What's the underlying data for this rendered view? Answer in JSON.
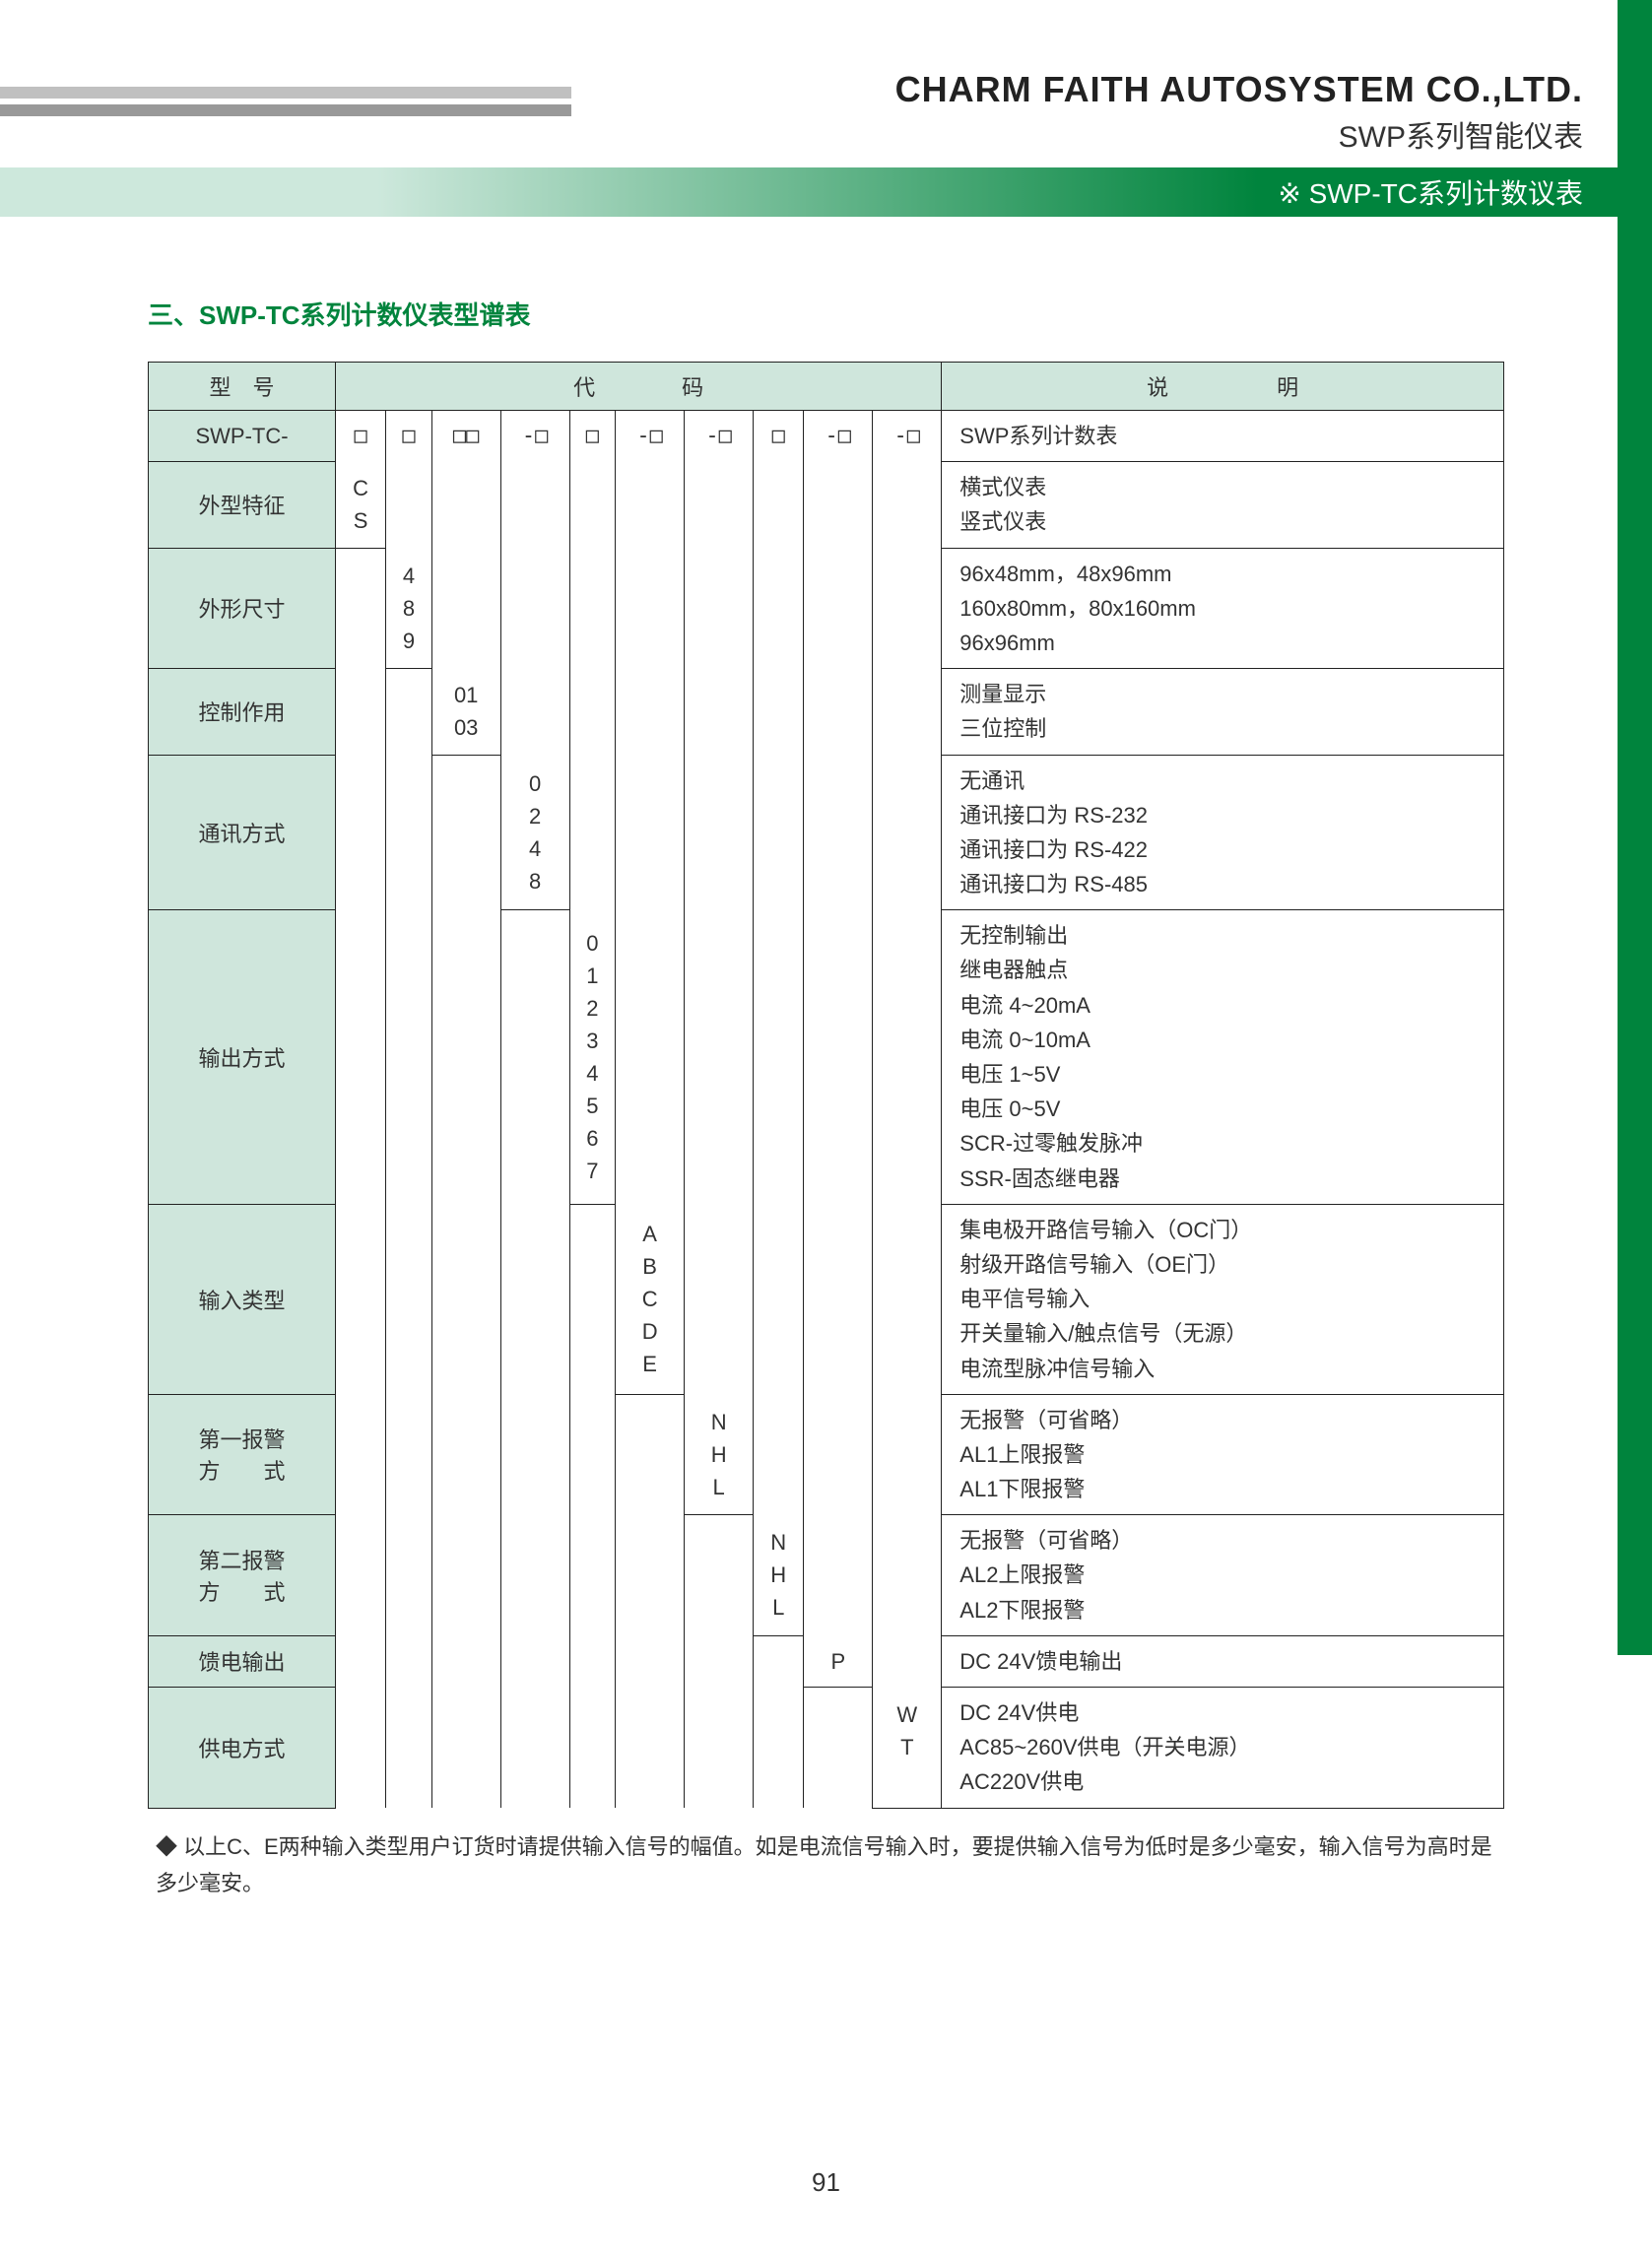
{
  "header": {
    "company": "CHARM FAITH AUTOSYSTEM CO.,LTD.",
    "series": "SWP系列智能仪表",
    "banner": "※ SWP-TC系列计数议表"
  },
  "section_title": "三、SWP-TC系列计数仪表型谱表",
  "table_headers": {
    "model": "型　号",
    "code": "代　　　　码",
    "desc": "说　　　　　明"
  },
  "code_row": {
    "label": "SWP-TC-",
    "c1": "□",
    "c2": "□",
    "c3": "□□",
    "c4": "-□",
    "c5": "□",
    "c6": "-□",
    "c7": "-□",
    "c8": "□",
    "c9": "-□",
    "c10": "-□",
    "desc": "SWP系列计数表"
  },
  "rows": [
    {
      "label": "外型特征",
      "col": 1,
      "codes": "C\nS",
      "desc": "横式仪表\n竖式仪表"
    },
    {
      "label": "外形尺寸",
      "col": 2,
      "codes": "4\n8\n9",
      "desc": "96x48mm，48x96mm\n160x80mm，80x160mm\n96x96mm"
    },
    {
      "label": "控制作用",
      "col": 3,
      "codes": "01\n03",
      "desc": "测量显示\n三位控制"
    },
    {
      "label": "通讯方式",
      "col": 4,
      "codes": "0\n2\n4\n8",
      "desc": "无通讯\n通讯接口为 RS-232\n通讯接口为 RS-422\n通讯接口为 RS-485"
    },
    {
      "label": "输出方式",
      "col": 5,
      "codes": "0\n1\n2\n3\n4\n5\n6\n7",
      "desc": "无控制输出\n继电器触点\n电流 4~20mA\n电流 0~10mA\n电压 1~5V\n电压 0~5V\nSCR-过零触发脉冲\nSSR-固态继电器"
    },
    {
      "label": "输入类型",
      "col": 6,
      "codes": "A\nB\nC\nD\nE",
      "desc": "集电极开路信号输入（OC门）\n射级开路信号输入（OE门）\n电平信号输入\n开关量输入/触点信号（无源）\n电流型脉冲信号输入"
    },
    {
      "label": "第一报警\n方　　式",
      "col": 7,
      "codes": "N\nH\nL",
      "desc": "无报警（可省略）\nAL1上限报警\nAL1下限报警"
    },
    {
      "label": "第二报警\n方　　式",
      "col": 8,
      "codes": "N\nH\nL",
      "desc": "无报警（可省略）\nAL2上限报警\nAL2下限报警"
    },
    {
      "label": "馈电输出",
      "col": 9,
      "codes": "P",
      "desc": "DC 24V馈电输出"
    },
    {
      "label": "供电方式",
      "col": 10,
      "codes": "W\nT\n　",
      "desc": "DC 24V供电\nAC85~260V供电（开关电源）\nAC220V供电"
    }
  ],
  "note": "◆ 以上C、E两种输入类型用户订货时请提供输入信号的幅值。如是电流信号输入时，要提供输入信号为低时是多少毫安，输入信号为高时是多少毫安。",
  "page_num": "91",
  "colors": {
    "brand_green": "#00843d",
    "header_bg": "#cfe6dc",
    "gray1": "#c0c0c0",
    "gray2": "#999999"
  }
}
